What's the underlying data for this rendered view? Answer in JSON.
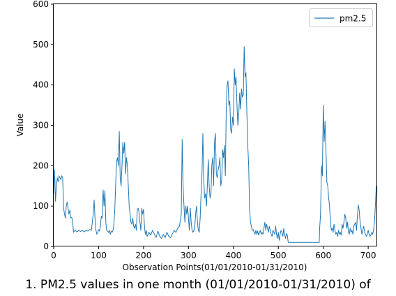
{
  "chart_data": {
    "type": "line",
    "xlabel": "Observation Points(01/01/2010-01/31/2010)",
    "ylabel": "Value",
    "xlim": [
      0,
      720
    ],
    "ylim": [
      0,
      600
    ],
    "xticks": [
      0,
      100,
      200,
      300,
      400,
      500,
      600,
      700
    ],
    "yticks": [
      0,
      100,
      200,
      300,
      400,
      500,
      600
    ],
    "grid": false,
    "legend_position": "top-right",
    "series": [
      {
        "name": "pm2.5",
        "color": "#1f77b4",
        "points": [
          [
            0,
            130
          ],
          [
            2,
            190
          ],
          [
            4,
            112
          ],
          [
            6,
            150
          ],
          [
            8,
            170
          ],
          [
            10,
            160
          ],
          [
            12,
            175
          ],
          [
            14,
            170
          ],
          [
            16,
            165
          ],
          [
            18,
            175
          ],
          [
            20,
            170
          ],
          [
            22,
            95
          ],
          [
            24,
            80
          ],
          [
            26,
            70
          ],
          [
            28,
            100
          ],
          [
            30,
            110
          ],
          [
            32,
            95
          ],
          [
            34,
            80
          ],
          [
            36,
            90
          ],
          [
            38,
            70
          ],
          [
            40,
            72
          ],
          [
            42,
            65
          ],
          [
            44,
            35
          ],
          [
            46,
            38
          ],
          [
            48,
            40
          ],
          [
            52,
            36
          ],
          [
            56,
            40
          ],
          [
            60,
            37
          ],
          [
            64,
            40
          ],
          [
            68,
            36
          ],
          [
            72,
            40
          ],
          [
            76,
            38
          ],
          [
            80,
            42
          ],
          [
            84,
            40
          ],
          [
            86,
            60
          ],
          [
            88,
            80
          ],
          [
            90,
            115
          ],
          [
            92,
            70
          ],
          [
            94,
            40
          ],
          [
            96,
            30
          ],
          [
            98,
            35
          ],
          [
            100,
            42
          ],
          [
            102,
            38
          ],
          [
            104,
            50
          ],
          [
            106,
            75
          ],
          [
            108,
            70
          ],
          [
            110,
            140
          ],
          [
            112,
            100
          ],
          [
            114,
            138
          ],
          [
            116,
            60
          ],
          [
            118,
            40
          ],
          [
            120,
            38
          ],
          [
            122,
            35
          ],
          [
            124,
            40
          ],
          [
            126,
            30
          ],
          [
            128,
            38
          ],
          [
            130,
            35
          ],
          [
            132,
            40
          ],
          [
            134,
            55
          ],
          [
            136,
            90
          ],
          [
            138,
            150
          ],
          [
            140,
            210
          ],
          [
            142,
            220
          ],
          [
            144,
            200
          ],
          [
            146,
            285
          ],
          [
            148,
            170
          ],
          [
            150,
            150
          ],
          [
            152,
            200
          ],
          [
            154,
            258
          ],
          [
            156,
            230
          ],
          [
            158,
            258
          ],
          [
            160,
            180
          ],
          [
            162,
            220
          ],
          [
            164,
            200
          ],
          [
            166,
            150
          ],
          [
            168,
            100
          ],
          [
            170,
            80
          ],
          [
            172,
            60
          ],
          [
            174,
            55
          ],
          [
            176,
            70
          ],
          [
            178,
            50
          ],
          [
            180,
            45
          ],
          [
            182,
            55
          ],
          [
            184,
            40
          ],
          [
            186,
            90
          ],
          [
            188,
            95
          ],
          [
            190,
            85
          ],
          [
            192,
            60
          ],
          [
            194,
            40
          ],
          [
            196,
            95
          ],
          [
            198,
            80
          ],
          [
            200,
            92
          ],
          [
            202,
            50
          ],
          [
            204,
            30
          ],
          [
            206,
            40
          ],
          [
            208,
            25
          ],
          [
            212,
            35
          ],
          [
            216,
            28
          ],
          [
            220,
            40
          ],
          [
            224,
            30
          ],
          [
            228,
            22
          ],
          [
            232,
            38
          ],
          [
            236,
            25
          ],
          [
            240,
            20
          ],
          [
            244,
            30
          ],
          [
            248,
            22
          ],
          [
            252,
            35
          ],
          [
            256,
            25
          ],
          [
            260,
            22
          ],
          [
            264,
            30
          ],
          [
            268,
            40
          ],
          [
            272,
            35
          ],
          [
            276,
            45
          ],
          [
            280,
            50
          ],
          [
            282,
            65
          ],
          [
            284,
            80
          ],
          [
            286,
            265
          ],
          [
            288,
            150
          ],
          [
            290,
            100
          ],
          [
            292,
            60
          ],
          [
            294,
            100
          ],
          [
            296,
            80
          ],
          [
            298,
            100
          ],
          [
            300,
            70
          ],
          [
            302,
            40
          ],
          [
            304,
            95
          ],
          [
            306,
            60
          ],
          [
            308,
            40
          ],
          [
            310,
            35
          ],
          [
            312,
            40
          ],
          [
            314,
            50
          ],
          [
            316,
            80
          ],
          [
            318,
            100
          ],
          [
            320,
            60
          ],
          [
            322,
            40
          ],
          [
            324,
            35
          ],
          [
            326,
            70
          ],
          [
            328,
            130
          ],
          [
            330,
            180
          ],
          [
            332,
            280
          ],
          [
            334,
            170
          ],
          [
            336,
            120
          ],
          [
            338,
            130
          ],
          [
            340,
            100
          ],
          [
            342,
            150
          ],
          [
            344,
            215
          ],
          [
            346,
            150
          ],
          [
            348,
            120
          ],
          [
            350,
            130
          ],
          [
            352,
            200
          ],
          [
            354,
            220
          ],
          [
            356,
            150
          ],
          [
            358,
            260
          ],
          [
            360,
            280
          ],
          [
            362,
            180
          ],
          [
            364,
            170
          ],
          [
            366,
            190
          ],
          [
            368,
            200
          ],
          [
            370,
            220
          ],
          [
            372,
            150
          ],
          [
            374,
            165
          ],
          [
            376,
            240
          ],
          [
            378,
            220
          ],
          [
            380,
            250
          ],
          [
            382,
            175
          ],
          [
            384,
            340
          ],
          [
            386,
            400
          ],
          [
            388,
            410
          ],
          [
            390,
            350
          ],
          [
            392,
            360
          ],
          [
            394,
            290
          ],
          [
            396,
            280
          ],
          [
            398,
            320
          ],
          [
            400,
            300
          ],
          [
            402,
            440
          ],
          [
            404,
            400
          ],
          [
            406,
            420
          ],
          [
            408,
            350
          ],
          [
            410,
            300
          ],
          [
            412,
            330
          ],
          [
            414,
            380
          ],
          [
            416,
            340
          ],
          [
            418,
            390
          ],
          [
            420,
            370
          ],
          [
            422,
            375
          ],
          [
            424,
            495
          ],
          [
            426,
            420
          ],
          [
            428,
            430
          ],
          [
            430,
            330
          ],
          [
            432,
            250
          ],
          [
            434,
            200
          ],
          [
            436,
            90
          ],
          [
            438,
            60
          ],
          [
            440,
            50
          ],
          [
            442,
            40
          ],
          [
            444,
            42
          ],
          [
            446,
            35
          ],
          [
            448,
            30
          ],
          [
            450,
            40
          ],
          [
            452,
            30
          ],
          [
            454,
            38
          ],
          [
            456,
            28
          ],
          [
            458,
            35
          ],
          [
            460,
            40
          ],
          [
            462,
            30
          ],
          [
            464,
            35
          ],
          [
            466,
            30
          ],
          [
            468,
            45
          ],
          [
            470,
            60
          ],
          [
            472,
            40
          ],
          [
            474,
            55
          ],
          [
            476,
            45
          ],
          [
            478,
            35
          ],
          [
            480,
            50
          ],
          [
            482,
            40
          ],
          [
            484,
            30
          ],
          [
            486,
            25
          ],
          [
            488,
            40
          ],
          [
            490,
            35
          ],
          [
            492,
            30
          ],
          [
            494,
            50
          ],
          [
            496,
            30
          ],
          [
            498,
            20
          ],
          [
            500,
            35
          ],
          [
            502,
            15
          ],
          [
            504,
            30
          ],
          [
            506,
            40
          ],
          [
            508,
            35
          ],
          [
            510,
            25
          ],
          [
            512,
            45
          ],
          [
            514,
            30
          ],
          [
            516,
            20
          ],
          [
            518,
            32
          ],
          [
            520,
            28
          ],
          [
            522,
            10
          ],
          [
            591,
            10
          ],
          [
            592,
            45
          ],
          [
            594,
            80
          ],
          [
            596,
            200
          ],
          [
            598,
            175
          ],
          [
            600,
            350
          ],
          [
            602,
            260
          ],
          [
            604,
            310
          ],
          [
            606,
            240
          ],
          [
            608,
            160
          ],
          [
            610,
            150
          ],
          [
            612,
            120
          ],
          [
            614,
            100
          ],
          [
            616,
            60
          ],
          [
            618,
            40
          ],
          [
            620,
            45
          ],
          [
            622,
            35
          ],
          [
            624,
            55
          ],
          [
            626,
            40
          ],
          [
            628,
            30
          ],
          [
            630,
            35
          ],
          [
            632,
            25
          ],
          [
            634,
            40
          ],
          [
            636,
            30
          ],
          [
            638,
            35
          ],
          [
            640,
            28
          ],
          [
            642,
            55
          ],
          [
            644,
            45
          ],
          [
            646,
            60
          ],
          [
            648,
            80
          ],
          [
            650,
            70
          ],
          [
            652,
            45
          ],
          [
            654,
            60
          ],
          [
            656,
            35
          ],
          [
            658,
            30
          ],
          [
            660,
            45
          ],
          [
            662,
            35
          ],
          [
            664,
            40
          ],
          [
            666,
            30
          ],
          [
            668,
            50
          ],
          [
            670,
            55
          ],
          [
            672,
            60
          ],
          [
            674,
            40
          ],
          [
            676,
            75
          ],
          [
            678,
            103
          ],
          [
            680,
            90
          ],
          [
            682,
            60
          ],
          [
            684,
            45
          ],
          [
            686,
            30
          ],
          [
            688,
            40
          ],
          [
            690,
            50
          ],
          [
            692,
            35
          ],
          [
            694,
            30
          ],
          [
            696,
            25
          ],
          [
            698,
            30
          ],
          [
            700,
            40
          ],
          [
            702,
            30
          ],
          [
            704,
            25
          ],
          [
            706,
            28
          ],
          [
            708,
            35
          ],
          [
            710,
            30
          ],
          [
            712,
            40
          ],
          [
            714,
            60
          ],
          [
            716,
            100
          ],
          [
            718,
            150
          ]
        ]
      }
    ]
  },
  "caption": "1. PM2.5 values in one month (01/01/2010-01/31/2010) of"
}
